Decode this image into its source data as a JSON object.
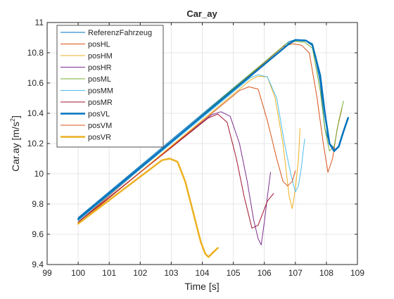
{
  "chart_data": {
    "type": "line",
    "title": "Car_ay",
    "xlabel": "Time [s]",
    "ylabel": "Car.ay [m/s²]",
    "ylabel_base": "Car.ay [m/s",
    "ylabel_sup": "2",
    "ylabel_tail": "]",
    "xlim": [
      99,
      109
    ],
    "ylim": [
      9.4,
      11
    ],
    "xticks": [
      99,
      100,
      101,
      102,
      103,
      104,
      105,
      106,
      107,
      108,
      109
    ],
    "yticks": [
      9.4,
      9.6,
      9.8,
      10,
      10.2,
      10.4,
      10.6,
      10.8,
      11
    ],
    "xtick_labels": [
      "99",
      "100",
      "101",
      "102",
      "103",
      "104",
      "105",
      "106",
      "107",
      "108",
      "109"
    ],
    "ytick_labels": [
      "9.4",
      "9.6",
      "9.8",
      "10",
      "10.2",
      "10.4",
      "10.6",
      "10.8",
      "11"
    ],
    "grid": true,
    "legend_position": "top-left",
    "series": [
      {
        "name": "ReferenzFahrzeug",
        "color": "#0072BD",
        "width": 1,
        "points": [
          [
            100,
            9.71
          ],
          [
            106.8,
            10.875
          ],
          [
            107.0,
            10.885
          ],
          [
            107.3,
            10.885
          ],
          [
            107.55,
            10.86
          ],
          [
            107.8,
            10.6
          ],
          [
            107.95,
            10.3
          ],
          [
            108.1,
            10.2
          ],
          [
            108.3,
            10.16
          ]
        ]
      },
      {
        "name": "posHL",
        "color": "#D95319",
        "width": 1,
        "points": [
          [
            100,
            9.68
          ],
          [
            106.6,
            10.84
          ],
          [
            106.9,
            10.86
          ],
          [
            107.2,
            10.85
          ],
          [
            107.45,
            10.8
          ],
          [
            107.7,
            10.5
          ],
          [
            107.9,
            10.2
          ],
          [
            108.05,
            10.01
          ],
          [
            108.2,
            10.1
          ],
          [
            108.35,
            10.3
          ],
          [
            108.5,
            10.43
          ]
        ]
      },
      {
        "name": "posHM",
        "color": "#EDB120",
        "width": 1,
        "points": [
          [
            100,
            9.67
          ],
          [
            105.55,
            10.62
          ],
          [
            105.8,
            10.645
          ],
          [
            106.1,
            10.64
          ],
          [
            106.35,
            10.5
          ],
          [
            106.6,
            10.2
          ],
          [
            106.8,
            9.85
          ],
          [
            106.9,
            9.77
          ],
          [
            107.0,
            9.9
          ],
          [
            107.1,
            10.1
          ],
          [
            107.15,
            10.3
          ]
        ]
      },
      {
        "name": "posHR",
        "color": "#7E2F8E",
        "width": 1,
        "points": [
          [
            100,
            9.68
          ],
          [
            104.3,
            10.39
          ],
          [
            104.6,
            10.41
          ],
          [
            104.9,
            10.38
          ],
          [
            105.2,
            10.2
          ],
          [
            105.45,
            9.95
          ],
          [
            105.65,
            9.7
          ],
          [
            105.8,
            9.57
          ],
          [
            105.9,
            9.53
          ],
          [
            106.0,
            9.68
          ],
          [
            106.1,
            9.85
          ],
          [
            106.2,
            10.01
          ]
        ]
      },
      {
        "name": "posML",
        "color": "#77AC30",
        "width": 1,
        "points": [
          [
            100,
            9.69
          ],
          [
            106.7,
            10.86
          ],
          [
            107.0,
            10.875
          ],
          [
            107.3,
            10.87
          ],
          [
            107.55,
            10.83
          ],
          [
            107.8,
            10.55
          ],
          [
            107.95,
            10.3
          ],
          [
            108.1,
            10.15
          ],
          [
            108.25,
            10.18
          ],
          [
            108.4,
            10.35
          ],
          [
            108.55,
            10.48
          ]
        ]
      },
      {
        "name": "posMM",
        "color": "#4DBEEE",
        "width": 1,
        "points": [
          [
            100,
            9.69
          ],
          [
            105.55,
            10.635
          ],
          [
            105.8,
            10.655
          ],
          [
            106.1,
            10.64
          ],
          [
            106.4,
            10.5
          ],
          [
            106.65,
            10.2
          ],
          [
            106.85,
            10.0
          ],
          [
            107.0,
            9.88
          ],
          [
            107.1,
            9.92
          ],
          [
            107.2,
            10.05
          ],
          [
            107.3,
            10.23
          ]
        ]
      },
      {
        "name": "posMR",
        "color": "#A2142F",
        "width": 1,
        "points": [
          [
            100,
            9.68
          ],
          [
            104.2,
            10.37
          ],
          [
            104.5,
            10.395
          ],
          [
            104.8,
            10.34
          ],
          [
            105.1,
            10.1
          ],
          [
            105.35,
            9.85
          ],
          [
            105.6,
            9.64
          ],
          [
            105.8,
            9.66
          ],
          [
            105.95,
            9.74
          ],
          [
            106.1,
            9.82
          ],
          [
            106.3,
            9.87
          ]
        ]
      },
      {
        "name": "posVL",
        "color": "#0072BD",
        "width": 2.5,
        "points": [
          [
            100,
            9.7
          ],
          [
            106.8,
            10.86
          ],
          [
            107.0,
            10.885
          ],
          [
            107.35,
            10.88
          ],
          [
            107.55,
            10.85
          ],
          [
            107.8,
            10.65
          ],
          [
            107.95,
            10.4
          ],
          [
            108.1,
            10.2
          ],
          [
            108.25,
            10.15
          ],
          [
            108.4,
            10.18
          ],
          [
            108.55,
            10.28
          ],
          [
            108.7,
            10.37
          ]
        ]
      },
      {
        "name": "posVM",
        "color": "#D95319",
        "width": 1,
        "points": [
          [
            100,
            9.67
          ],
          [
            105.2,
            10.55
          ],
          [
            105.5,
            10.575
          ],
          [
            105.8,
            10.56
          ],
          [
            106.1,
            10.35
          ],
          [
            106.4,
            10.1
          ],
          [
            106.6,
            9.95
          ],
          [
            106.75,
            9.92
          ],
          [
            106.9,
            9.95
          ],
          [
            107.0,
            10.02
          ]
        ]
      },
      {
        "name": "posVR",
        "color": "#EDB120",
        "width": 2.5,
        "points": [
          [
            100,
            9.67
          ],
          [
            102.7,
            10.09
          ],
          [
            102.95,
            10.1
          ],
          [
            103.2,
            10.08
          ],
          [
            103.45,
            9.95
          ],
          [
            103.7,
            9.75
          ],
          [
            103.95,
            9.55
          ],
          [
            104.1,
            9.47
          ],
          [
            104.2,
            9.45
          ],
          [
            104.35,
            9.48
          ],
          [
            104.5,
            9.51
          ]
        ]
      }
    ]
  }
}
